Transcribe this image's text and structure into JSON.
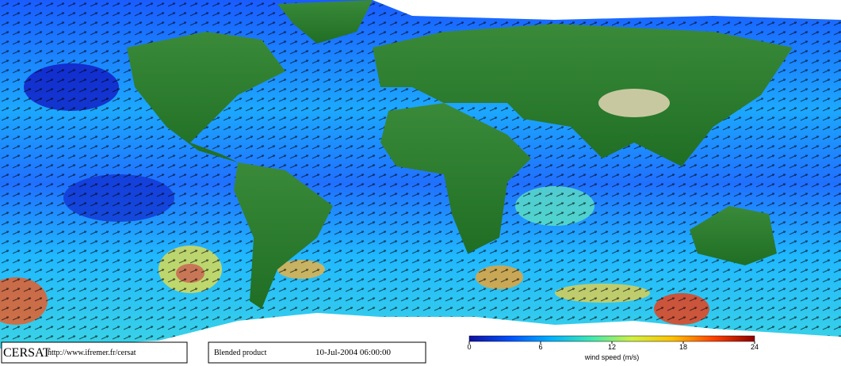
{
  "credit": {
    "logo": "CERSAT",
    "url": "http://www.ifremer.fr/cersat"
  },
  "product": "Blended product",
  "timestamp": "10-Jul-2004 06:00:00",
  "colorbar": {
    "label": "wind speed (m/s)",
    "range": [
      0,
      24
    ],
    "ticks": [
      0,
      6,
      12,
      18,
      24
    ],
    "colors": [
      "#1010a0",
      "#0050ff",
      "#00b0ff",
      "#40e8b0",
      "#d0f040",
      "#ffc000",
      "#ff4000",
      "#900000"
    ]
  }
}
